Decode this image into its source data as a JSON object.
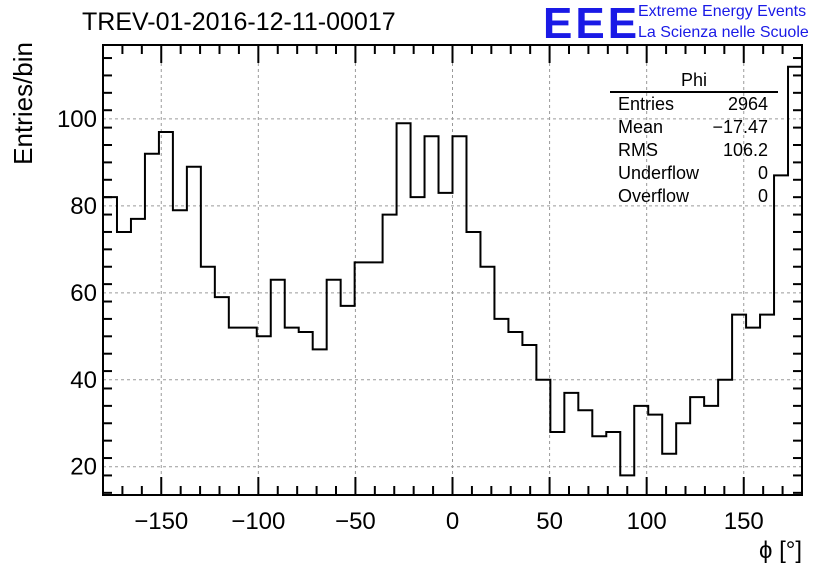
{
  "header": {
    "title": "TREV-01-2016-12-11-00017"
  },
  "logo": {
    "mark": "EEE",
    "line1": "Extreme Energy Events",
    "line2": "La Scienza nelle Scuole",
    "color": "#1a1ae6"
  },
  "stats": {
    "title": "Phi",
    "rows": [
      {
        "label": "Entries",
        "value": "2964"
      },
      {
        "label": "Mean",
        "value": "−17.47"
      },
      {
        "label": "RMS",
        "value": "106.2"
      },
      {
        "label": "Underflow",
        "value": "0"
      },
      {
        "label": "Overflow",
        "value": "0"
      }
    ]
  },
  "chart_data": {
    "type": "histogram",
    "title": "",
    "xlabel": "ϕ [°]",
    "ylabel": "Entries/bin",
    "xlim": [
      -180,
      180
    ],
    "ylim": [
      13.5,
      117
    ],
    "bin_width": 7.2,
    "bin_edges_start": -180,
    "values": [
      82,
      74,
      77,
      92,
      97,
      79,
      89,
      66,
      59,
      52,
      52,
      50,
      63,
      52,
      51,
      47,
      63,
      57,
      67,
      67,
      78,
      99,
      82,
      96,
      83,
      96,
      74,
      66,
      54,
      51,
      48,
      40,
      28,
      37,
      33,
      27,
      28,
      18,
      34,
      32,
      23,
      30,
      36,
      34,
      40,
      55,
      52,
      55,
      87,
      112
    ],
    "x_ticks": [
      -150,
      -100,
      -50,
      0,
      50,
      100,
      150
    ],
    "x_tick_labels": [
      "−150",
      "−100",
      "−50",
      "0",
      "50",
      "100",
      "150"
    ],
    "y_ticks": [
      20,
      40,
      60,
      80,
      100
    ],
    "y_tick_labels": [
      "20",
      "40",
      "60",
      "80",
      "100"
    ],
    "grid": true,
    "line_color": "#000000",
    "grid_color": "#9a9a9a"
  }
}
